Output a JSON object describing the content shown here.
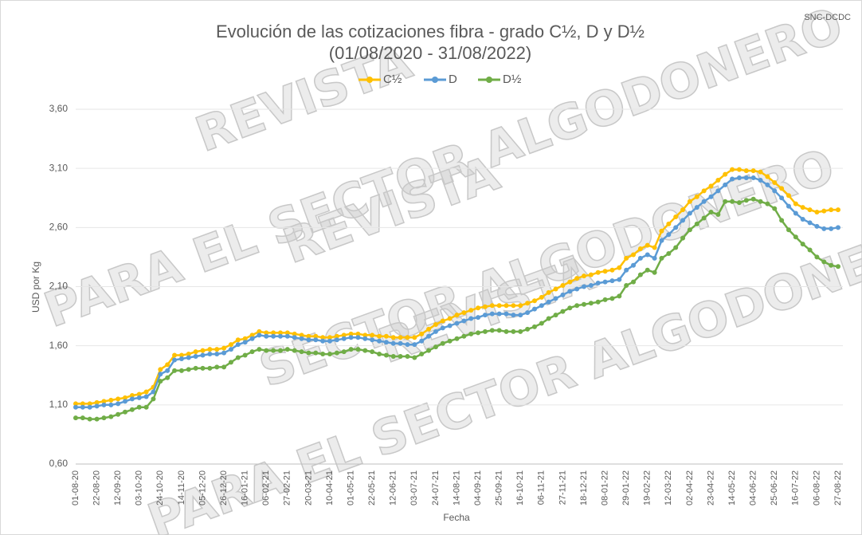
{
  "chart_data": {
    "type": "line",
    "title": "Evolución de las cotizaciones fibra - grado C½, D y D½",
    "subtitle": "(01/08/2020 - 31/08/2022)",
    "source": "SNC-DCDC",
    "watermark": [
      "REVISTA",
      "PARA EL SECTOR ALGODONERO",
      "REVISTA",
      "SECTOR ALGODONERO",
      "REVISTA",
      "PARA EL SECTOR ALGODONERO"
    ],
    "x_label": "Fecha",
    "y_label": "USD por Kg",
    "categories": [
      "01-08-20",
      null,
      null,
      "22-08-20",
      null,
      null,
      "12-09-20",
      null,
      null,
      "03-10-20",
      null,
      null,
      "24-10-20",
      null,
      null,
      "14-11-20",
      null,
      null,
      "05-12-20",
      null,
      null,
      "26-12-20",
      null,
      null,
      "16-01-21",
      null,
      null,
      "06-02-21",
      null,
      null,
      "27-02-21",
      null,
      null,
      "20-03-21",
      null,
      null,
      "10-04-21",
      null,
      null,
      "01-05-21",
      null,
      null,
      "22-05-21",
      null,
      null,
      "12-06-21",
      null,
      null,
      "03-07-21",
      null,
      null,
      "24-07-21",
      null,
      null,
      "14-08-21",
      null,
      null,
      "04-09-21",
      null,
      null,
      "25-09-21",
      null,
      null,
      "16-10-21",
      null,
      null,
      "06-11-21",
      null,
      null,
      "27-11-21",
      null,
      null,
      "18-12-21",
      null,
      null,
      "08-01-22",
      null,
      null,
      "29-01-22",
      null,
      null,
      "19-02-22",
      null,
      null,
      "12-03-22",
      null,
      null,
      "02-04-22",
      null,
      null,
      "23-04-22",
      null,
      null,
      "14-05-22",
      null,
      null,
      "04-06-22",
      null,
      null,
      "25-06-22",
      null,
      null,
      "16-07-22",
      null,
      null,
      "06-08-22",
      null,
      null,
      "27-08-22"
    ],
    "series": [
      {
        "name": "C½",
        "color": "#ffc000",
        "values": [
          1.11,
          1.11,
          1.11,
          1.12,
          1.13,
          1.14,
          1.15,
          1.16,
          1.18,
          1.19,
          1.21,
          1.25,
          1.4,
          1.44,
          1.52,
          1.52,
          1.53,
          1.55,
          1.56,
          1.57,
          1.57,
          1.58,
          1.61,
          1.65,
          1.66,
          1.69,
          1.72,
          1.71,
          1.71,
          1.71,
          1.71,
          1.7,
          1.69,
          1.68,
          1.68,
          1.67,
          1.67,
          1.68,
          1.69,
          1.7,
          1.7,
          1.69,
          1.69,
          1.68,
          1.68,
          1.67,
          1.67,
          1.67,
          1.67,
          1.7,
          1.74,
          1.78,
          1.81,
          1.83,
          1.86,
          1.88,
          1.9,
          1.92,
          1.93,
          1.94,
          1.94,
          1.94,
          1.94,
          1.94,
          1.96,
          1.98,
          2.01,
          2.05,
          2.08,
          2.11,
          2.14,
          2.17,
          2.19,
          2.2,
          2.22,
          2.23,
          2.24,
          2.26,
          2.34,
          2.37,
          2.42,
          2.45,
          2.43,
          2.57,
          2.63,
          2.69,
          2.75,
          2.82,
          2.86,
          2.91,
          2.95,
          3.0,
          3.05,
          3.09,
          3.09,
          3.08,
          3.08,
          3.07,
          3.03,
          2.98,
          2.93,
          2.87,
          2.8,
          2.77,
          2.75,
          2.73,
          2.74,
          2.75,
          2.75
        ]
      },
      {
        "name": "D",
        "color": "#5b9bd5",
        "values": [
          1.08,
          1.08,
          1.08,
          1.09,
          1.1,
          1.1,
          1.11,
          1.13,
          1.15,
          1.16,
          1.17,
          1.21,
          1.36,
          1.39,
          1.48,
          1.49,
          1.5,
          1.51,
          1.52,
          1.53,
          1.53,
          1.54,
          1.57,
          1.61,
          1.63,
          1.66,
          1.69,
          1.68,
          1.68,
          1.68,
          1.68,
          1.67,
          1.66,
          1.65,
          1.65,
          1.64,
          1.64,
          1.65,
          1.66,
          1.67,
          1.67,
          1.66,
          1.65,
          1.64,
          1.63,
          1.62,
          1.62,
          1.61,
          1.61,
          1.64,
          1.68,
          1.72,
          1.75,
          1.77,
          1.79,
          1.81,
          1.83,
          1.84,
          1.86,
          1.87,
          1.87,
          1.87,
          1.86,
          1.86,
          1.88,
          1.91,
          1.94,
          1.97,
          2.0,
          2.03,
          2.06,
          2.08,
          2.1,
          2.11,
          2.13,
          2.14,
          2.15,
          2.16,
          2.24,
          2.28,
          2.34,
          2.37,
          2.34,
          2.49,
          2.54,
          2.6,
          2.66,
          2.72,
          2.77,
          2.82,
          2.86,
          2.91,
          2.96,
          3.01,
          3.02,
          3.02,
          3.02,
          3.0,
          2.96,
          2.91,
          2.85,
          2.78,
          2.72,
          2.67,
          2.64,
          2.61,
          2.59,
          2.59,
          2.6
        ]
      },
      {
        "name": "D½",
        "color": "#70ad47",
        "values": [
          0.99,
          0.99,
          0.98,
          0.98,
          0.99,
          1.0,
          1.02,
          1.04,
          1.06,
          1.08,
          1.08,
          1.15,
          1.3,
          1.33,
          1.39,
          1.39,
          1.4,
          1.41,
          1.41,
          1.41,
          1.42,
          1.42,
          1.46,
          1.5,
          1.52,
          1.55,
          1.57,
          1.56,
          1.56,
          1.56,
          1.57,
          1.56,
          1.55,
          1.54,
          1.54,
          1.53,
          1.53,
          1.54,
          1.55,
          1.57,
          1.57,
          1.56,
          1.55,
          1.53,
          1.52,
          1.51,
          1.51,
          1.51,
          1.5,
          1.53,
          1.56,
          1.59,
          1.62,
          1.64,
          1.66,
          1.68,
          1.7,
          1.71,
          1.72,
          1.73,
          1.73,
          1.72,
          1.72,
          1.72,
          1.74,
          1.76,
          1.79,
          1.83,
          1.86,
          1.89,
          1.92,
          1.94,
          1.95,
          1.96,
          1.97,
          1.99,
          2.0,
          2.02,
          2.11,
          2.14,
          2.2,
          2.24,
          2.22,
          2.34,
          2.38,
          2.43,
          2.51,
          2.58,
          2.63,
          2.68,
          2.73,
          2.71,
          2.82,
          2.82,
          2.81,
          2.83,
          2.84,
          2.82,
          2.8,
          2.76,
          2.66,
          2.58,
          2.52,
          2.46,
          2.41,
          2.35,
          2.31,
          2.28,
          2.27
        ]
      }
    ],
    "ylim": [
      0.6,
      3.6
    ],
    "yticks": [
      {
        "value": 0.6,
        "label": "0,60"
      },
      {
        "value": 1.1,
        "label": "1,10"
      },
      {
        "value": 1.6,
        "label": "1,60"
      },
      {
        "value": 2.1,
        "label": "2,10"
      },
      {
        "value": 2.6,
        "label": "2,60"
      },
      {
        "value": 3.1,
        "label": "3,10"
      },
      {
        "value": 3.6,
        "label": "3,60"
      }
    ],
    "grid": true,
    "legend": "top"
  }
}
